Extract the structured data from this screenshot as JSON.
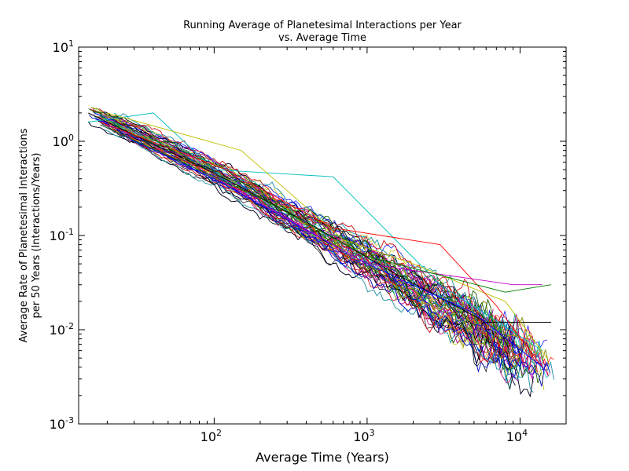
{
  "chart_data": {
    "type": "line",
    "title_line1": "Running Average of Planetesimal Interactions per Year",
    "title_line2": "vs. Average Time",
    "xlabel": "Average Time (Years)",
    "ylabel_line1": "Average Rate of Planetesimal Interactions",
    "ylabel_line2": "per 50 Years (Interactions/Years)",
    "x_scale": "log",
    "y_scale": "log",
    "xlim": [
      13,
      20000
    ],
    "ylim": [
      0.001,
      10
    ],
    "x_ticks": [
      {
        "base": "10",
        "exp": "2",
        "value": 100
      },
      {
        "base": "10",
        "exp": "3",
        "value": 1000
      },
      {
        "base": "10",
        "exp": "4",
        "value": 10000
      }
    ],
    "y_ticks": [
      {
        "base": "10",
        "exp": "1",
        "value": 10
      },
      {
        "base": "10",
        "exp": "0",
        "value": 1
      },
      {
        "base": "10",
        "exp": "-1",
        "value": 0.1
      },
      {
        "base": "10",
        "exp": "-2",
        "value": 0.01
      },
      {
        "base": "10",
        "exp": "-3",
        "value": 0.001
      }
    ],
    "grid": false,
    "legend": "none",
    "trend": {
      "x": [
        15,
        100,
        1000,
        12000
      ],
      "y": [
        2.0,
        0.45,
        0.05,
        0.004
      ]
    },
    "series_count": 150,
    "series_colors": [
      "#0000ff",
      "#008000",
      "#ff0000",
      "#00bfbf",
      "#bf00bf",
      "#bfbf00",
      "#000000"
    ],
    "series": [
      {
        "color": "#000000",
        "x": [
          15,
          100,
          400,
          1500,
          6000,
          16000
        ],
        "y": [
          2.0,
          0.46,
          0.14,
          0.04,
          0.012,
          0.012
        ]
      },
      {
        "color": "#00bfbf",
        "x": [
          15,
          40,
          100,
          600,
          3000,
          14000
        ],
        "y": [
          1.6,
          2.0,
          0.5,
          0.42,
          0.03,
          0.006
        ]
      },
      {
        "color": "#bfbf00",
        "x": [
          20,
          150,
          700,
          2000,
          8000,
          15000
        ],
        "y": [
          2.0,
          0.8,
          0.09,
          0.05,
          0.02,
          0.005
        ]
      },
      {
        "color": "#ff0000",
        "x": [
          18,
          120,
          600,
          3000,
          7000,
          14000
        ],
        "y": [
          1.6,
          0.5,
          0.12,
          0.08,
          0.018,
          0.004
        ]
      },
      {
        "color": "#0000ff",
        "x": [
          18,
          100,
          1000,
          5000,
          14000
        ],
        "y": [
          1.5,
          0.4,
          0.05,
          0.015,
          0.004
        ]
      },
      {
        "color": "#bf00bf",
        "x": [
          18,
          100,
          1000,
          9000,
          14000
        ],
        "y": [
          1.5,
          0.42,
          0.05,
          0.03,
          0.03
        ]
      },
      {
        "color": "#008000",
        "x": [
          18,
          200,
          1000,
          8000,
          16000
        ],
        "y": [
          1.5,
          0.25,
          0.06,
          0.025,
          0.03
        ]
      }
    ]
  }
}
